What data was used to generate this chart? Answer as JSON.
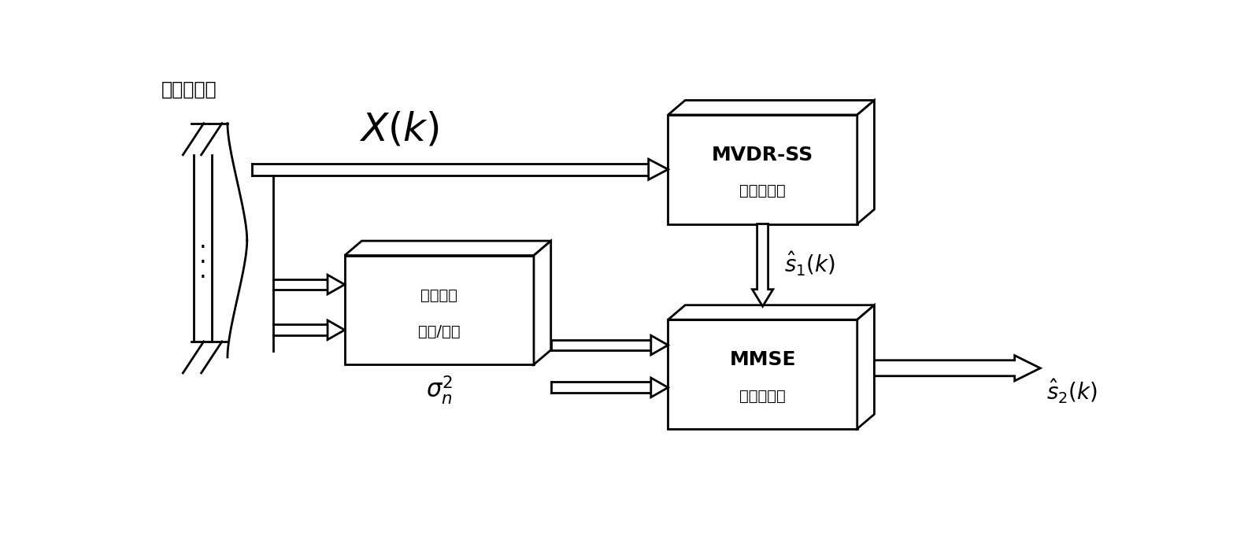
{
  "bg_color": "#ffffff",
  "sensor_label": "传感器阵列",
  "box1_line1": "MVDR-SS",
  "box1_line2": "波束形成器",
  "box2_line1": "噪声能量",
  "box2_line2": "估计/测量",
  "box3_line1": "MMSE",
  "box3_line2": "波束形成器"
}
